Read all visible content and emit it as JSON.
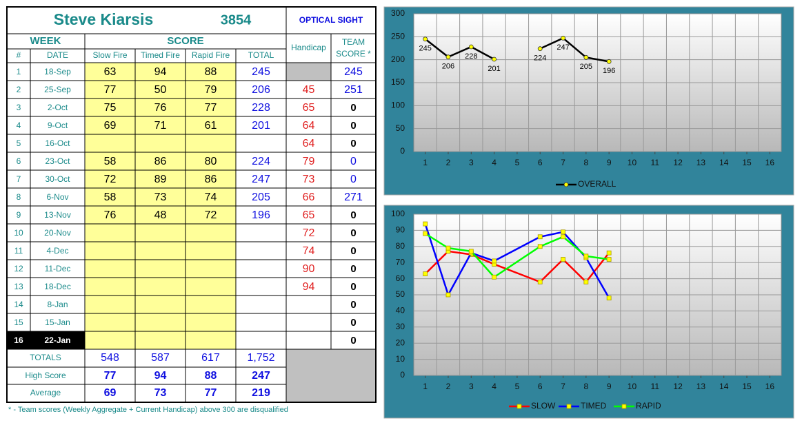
{
  "header": {
    "name": "Steve Kiarsis",
    "number": 3854,
    "sight": "OPTICAL SIGHT"
  },
  "table": {
    "groups": [
      "WEEK",
      "SCORE"
    ],
    "columns": [
      "#",
      "DATE",
      "Slow Fire",
      "Timed Fire",
      "Rapid Fire",
      "TOTAL",
      "Handicap",
      [
        "TEAM",
        "SCORE *"
      ]
    ],
    "rows": [
      [
        1,
        "18-Sep",
        63,
        94,
        88,
        245,
        null,
        245
      ],
      [
        2,
        "25-Sep",
        77,
        50,
        79,
        206,
        45,
        251
      ],
      [
        3,
        "2-Oct",
        75,
        76,
        77,
        228,
        65,
        0
      ],
      [
        4,
        "9-Oct",
        69,
        71,
        61,
        201,
        64,
        0
      ],
      [
        5,
        "16-Oct",
        null,
        null,
        null,
        null,
        64,
        0
      ],
      [
        6,
        "23-Oct",
        58,
        86,
        80,
        224,
        79,
        0
      ],
      [
        7,
        "30-Oct",
        72,
        89,
        86,
        247,
        73,
        0
      ],
      [
        8,
        "6-Nov",
        58,
        73,
        74,
        205,
        66,
        271
      ],
      [
        9,
        "13-Nov",
        76,
        48,
        72,
        196,
        65,
        0
      ],
      [
        10,
        "20-Nov",
        null,
        null,
        null,
        null,
        72,
        0
      ],
      [
        11,
        "4-Dec",
        null,
        null,
        null,
        null,
        74,
        0
      ],
      [
        12,
        "11-Dec",
        null,
        null,
        null,
        null,
        90,
        0
      ],
      [
        13,
        "18-Dec",
        null,
        null,
        null,
        null,
        94,
        0
      ],
      [
        14,
        "8-Jan",
        null,
        null,
        null,
        null,
        null,
        0
      ],
      [
        15,
        "15-Jan",
        null,
        null,
        null,
        null,
        null,
        0
      ],
      [
        16,
        "22-Jan",
        null,
        null,
        null,
        null,
        null,
        0
      ]
    ],
    "summary": [
      {
        "label": "TOTALS",
        "values": [
          548,
          587,
          617,
          "1,752"
        ]
      },
      {
        "label": "High Score",
        "values": [
          77,
          94,
          88,
          247
        ]
      },
      {
        "label": "Average",
        "values": [
          69,
          73,
          77,
          219
        ]
      }
    ]
  },
  "footnote": "* - Team scores (Weekly Aggregate + Current Handicap) above 300 are disqualified",
  "chart_data": [
    {
      "type": "line",
      "x": [
        1,
        2,
        3,
        4,
        5,
        6,
        7,
        8,
        9
      ],
      "series": [
        {
          "name": "OVERALL",
          "color": "#000000",
          "marker_color": "#ffff00",
          "marker": "circle",
          "values": [
            245,
            206,
            228,
            201,
            null,
            224,
            247,
            205,
            196
          ]
        }
      ],
      "data_labels": true,
      "xlim": [
        0.5,
        16.5
      ],
      "xticks": [
        1,
        2,
        3,
        4,
        5,
        6,
        7,
        8,
        9,
        10,
        11,
        12,
        13,
        14,
        15,
        16
      ],
      "ylim": [
        0,
        300
      ],
      "yticks": [
        0,
        50,
        100,
        150,
        200,
        250,
        300
      ],
      "grid": true,
      "legend": "bottom"
    },
    {
      "type": "line",
      "x": [
        1,
        2,
        3,
        4,
        6,
        7,
        8,
        9
      ],
      "series": [
        {
          "name": "SLOW",
          "color": "#ff0000",
          "marker_color": "#ffff00",
          "marker": "square",
          "values": [
            63,
            77,
            75,
            69,
            58,
            72,
            58,
            76
          ]
        },
        {
          "name": "TIMED",
          "color": "#0000ff",
          "marker_color": "#ffff00",
          "marker": "square",
          "values": [
            94,
            50,
            76,
            71,
            86,
            89,
            73,
            48
          ]
        },
        {
          "name": "RAPID",
          "color": "#00ff00",
          "marker_color": "#ffff00",
          "marker": "square",
          "values": [
            88,
            79,
            77,
            61,
            80,
            86,
            74,
            72
          ]
        }
      ],
      "data_labels": false,
      "xlim": [
        0.5,
        16.5
      ],
      "xticks": [
        1,
        2,
        3,
        4,
        5,
        6,
        7,
        8,
        9,
        10,
        11,
        12,
        13,
        14,
        15,
        16
      ],
      "ylim": [
        0,
        100
      ],
      "yticks": [
        0,
        10,
        20,
        30,
        40,
        50,
        60,
        70,
        80,
        90,
        100
      ],
      "grid": true,
      "legend": "bottom"
    }
  ]
}
